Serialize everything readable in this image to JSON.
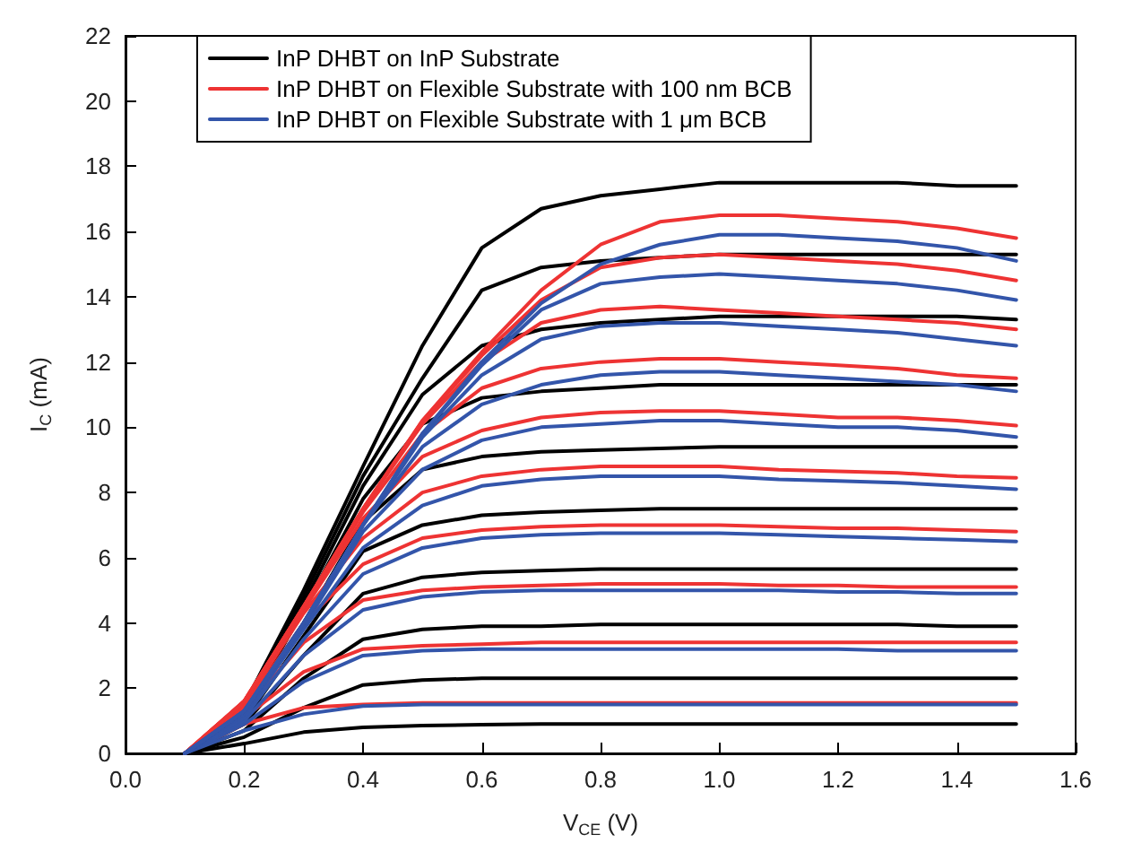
{
  "chart_data": {
    "type": "line",
    "xlabel": "V$_{CE}$ (V)",
    "ylabel": "I$_{C}$ (mA)",
    "legend": "top",
    "x": [
      0.1,
      0.2,
      0.3,
      0.4,
      0.5,
      0.6,
      0.7,
      0.8,
      0.9,
      1.0,
      1.1,
      1.2,
      1.3,
      1.4,
      1.5
    ],
    "xlim": [
      0,
      1.6
    ],
    "xticks": [
      {
        "value": 0,
        "label": "0.0"
      },
      0.2,
      0.4,
      0.6,
      0.8,
      {
        "value": 1,
        "label": "1.0"
      },
      1.2,
      1.4,
      1.6
    ],
    "ylim": [
      0,
      22
    ],
    "yticks": [
      0,
      2,
      4,
      6,
      8,
      10,
      12,
      14,
      16,
      18,
      20,
      22
    ],
    "series": [
      {
        "name": "InP DHBT on InP Substrate",
        "color": "#000000",
        "values": [
          0,
          0.3,
          0.65,
          0.8,
          0.85,
          0.88,
          0.9,
          0.9,
          0.9,
          0.9,
          0.9,
          0.9,
          0.9,
          0.9,
          0.9
        ]
      },
      {
        "color": "#000000",
        "values": [
          0,
          0.5,
          1.4,
          2.1,
          2.25,
          2.3,
          2.3,
          2.3,
          2.3,
          2.3,
          2.3,
          2.3,
          2.3,
          2.3,
          2.3
        ]
      },
      {
        "color": "#000000",
        "values": [
          0,
          0.7,
          2.3,
          3.5,
          3.8,
          3.9,
          3.9,
          3.95,
          3.95,
          3.95,
          3.95,
          3.95,
          3.95,
          3.9,
          3.9
        ]
      },
      {
        "color": "#000000",
        "values": [
          0,
          0.9,
          3.0,
          4.9,
          5.4,
          5.55,
          5.6,
          5.65,
          5.65,
          5.65,
          5.65,
          5.65,
          5.65,
          5.65,
          5.65
        ]
      },
      {
        "color": "#000000",
        "values": [
          0,
          1.0,
          3.6,
          6.2,
          7.0,
          7.3,
          7.4,
          7.45,
          7.5,
          7.5,
          7.5,
          7.5,
          7.5,
          7.5,
          7.5
        ]
      },
      {
        "color": "#000000",
        "values": [
          0,
          1.1,
          4.0,
          7.1,
          8.7,
          9.1,
          9.25,
          9.3,
          9.35,
          9.4,
          9.4,
          9.4,
          9.4,
          9.4,
          9.4
        ]
      },
      {
        "color": "#000000",
        "values": [
          0,
          1.2,
          4.4,
          7.8,
          10.1,
          10.9,
          11.1,
          11.2,
          11.3,
          11.3,
          11.3,
          11.3,
          11.3,
          11.3,
          11.3
        ]
      },
      {
        "color": "#000000",
        "values": [
          0,
          1.3,
          4.6,
          8.2,
          11.0,
          12.5,
          13.0,
          13.2,
          13.3,
          13.4,
          13.4,
          13.4,
          13.4,
          13.4,
          13.3
        ]
      },
      {
        "color": "#000000",
        "values": [
          0,
          1.4,
          4.8,
          8.5,
          11.5,
          14.2,
          14.9,
          15.1,
          15.2,
          15.3,
          15.3,
          15.3,
          15.3,
          15.3,
          15.3
        ]
      },
      {
        "color": "#000000",
        "values": [
          0,
          1.5,
          5.0,
          8.8,
          12.5,
          15.5,
          16.7,
          17.1,
          17.3,
          17.5,
          17.5,
          17.5,
          17.5,
          17.4,
          17.4
        ]
      },
      {
        "name": "InP DHBT on Flexible Substrate with 100 nm BCB",
        "color": "#ee3333",
        "values": [
          0,
          0.9,
          1.4,
          1.5,
          1.55,
          1.55,
          1.55,
          1.55,
          1.55,
          1.55,
          1.55,
          1.55,
          1.55,
          1.55,
          1.55
        ]
      },
      {
        "color": "#ee3333",
        "values": [
          0,
          1.1,
          2.5,
          3.2,
          3.3,
          3.35,
          3.4,
          3.4,
          3.4,
          3.4,
          3.4,
          3.4,
          3.4,
          3.4,
          3.4
        ]
      },
      {
        "color": "#ee3333",
        "values": [
          0,
          1.3,
          3.4,
          4.7,
          5.0,
          5.1,
          5.15,
          5.2,
          5.2,
          5.2,
          5.15,
          5.15,
          5.1,
          5.1,
          5.1
        ]
      },
      {
        "color": "#ee3333",
        "values": [
          0,
          1.4,
          4.0,
          5.8,
          6.6,
          6.85,
          6.95,
          7.0,
          7.0,
          7.0,
          6.95,
          6.9,
          6.9,
          6.85,
          6.8
        ]
      },
      {
        "color": "#ee3333",
        "values": [
          0,
          1.5,
          4.3,
          6.6,
          8.0,
          8.5,
          8.7,
          8.8,
          8.8,
          8.8,
          8.7,
          8.65,
          8.6,
          8.5,
          8.45
        ]
      },
      {
        "color": "#ee3333",
        "values": [
          0,
          1.55,
          4.4,
          7.2,
          9.1,
          9.9,
          10.3,
          10.45,
          10.5,
          10.5,
          10.4,
          10.3,
          10.3,
          10.2,
          10.05
        ]
      },
      {
        "color": "#ee3333",
        "values": [
          0,
          1.6,
          4.5,
          7.4,
          9.8,
          11.2,
          11.8,
          12.0,
          12.1,
          12.1,
          12.0,
          11.9,
          11.8,
          11.6,
          11.5
        ]
      },
      {
        "color": "#ee3333",
        "values": [
          0,
          1.6,
          4.5,
          7.5,
          10.1,
          12.0,
          13.2,
          13.6,
          13.7,
          13.6,
          13.5,
          13.4,
          13.3,
          13.2,
          13.0
        ]
      },
      {
        "color": "#ee3333",
        "values": [
          0,
          1.6,
          4.5,
          7.5,
          10.2,
          12.2,
          13.9,
          14.9,
          15.2,
          15.3,
          15.2,
          15.1,
          15.0,
          14.8,
          14.5
        ]
      },
      {
        "color": "#ee3333",
        "values": [
          0,
          1.6,
          4.5,
          7.5,
          10.2,
          12.3,
          14.2,
          15.6,
          16.3,
          16.5,
          16.5,
          16.4,
          16.3,
          16.1,
          15.8
        ]
      },
      {
        "name": "InP DHBT on Flexible Substrate with 1 μm BCB",
        "color": "#3355aa",
        "values": [
          0,
          0.7,
          1.2,
          1.45,
          1.5,
          1.5,
          1.5,
          1.5,
          1.5,
          1.5,
          1.5,
          1.5,
          1.5,
          1.5,
          1.5
        ]
      },
      {
        "color": "#3355aa",
        "values": [
          0,
          0.9,
          2.2,
          3.0,
          3.15,
          3.2,
          3.2,
          3.2,
          3.2,
          3.2,
          3.2,
          3.2,
          3.15,
          3.15,
          3.15
        ]
      },
      {
        "color": "#3355aa",
        "values": [
          0,
          1.0,
          3.0,
          4.4,
          4.8,
          4.95,
          5.0,
          5.0,
          5.0,
          5.0,
          5.0,
          4.95,
          4.95,
          4.9,
          4.9
        ]
      },
      {
        "color": "#3355aa",
        "values": [
          0,
          1.1,
          3.5,
          5.5,
          6.3,
          6.6,
          6.7,
          6.75,
          6.75,
          6.75,
          6.7,
          6.65,
          6.6,
          6.55,
          6.5
        ]
      },
      {
        "color": "#3355aa",
        "values": [
          0,
          1.2,
          3.8,
          6.3,
          7.6,
          8.2,
          8.4,
          8.5,
          8.5,
          8.5,
          8.4,
          8.35,
          8.3,
          8.2,
          8.1
        ]
      },
      {
        "color": "#3355aa",
        "values": [
          0,
          1.25,
          3.9,
          6.8,
          8.7,
          9.6,
          10.0,
          10.1,
          10.2,
          10.2,
          10.1,
          10.0,
          10.0,
          9.9,
          9.7
        ]
      },
      {
        "color": "#3355aa",
        "values": [
          0,
          1.3,
          4.0,
          7.0,
          9.4,
          10.7,
          11.3,
          11.6,
          11.7,
          11.7,
          11.6,
          11.5,
          11.4,
          11.3,
          11.1
        ]
      },
      {
        "color": "#3355aa",
        "values": [
          0,
          1.3,
          4.0,
          7.0,
          9.7,
          11.6,
          12.7,
          13.1,
          13.2,
          13.2,
          13.1,
          13.0,
          12.9,
          12.7,
          12.5
        ]
      },
      {
        "color": "#3355aa",
        "values": [
          0,
          1.3,
          4.0,
          7.0,
          9.8,
          11.9,
          13.6,
          14.4,
          14.6,
          14.7,
          14.6,
          14.5,
          14.4,
          14.2,
          13.9
        ]
      },
      {
        "color": "#3355aa",
        "values": [
          0,
          1.3,
          4.0,
          7.0,
          9.8,
          12.0,
          13.8,
          15.0,
          15.6,
          15.9,
          15.9,
          15.8,
          15.7,
          15.5,
          15.1
        ]
      }
    ]
  }
}
